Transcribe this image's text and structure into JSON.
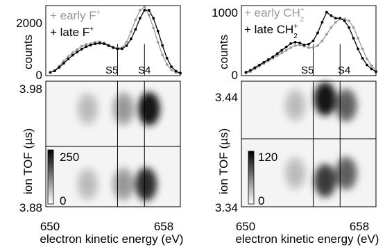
{
  "chart_data": [
    {
      "type": "line",
      "panel": "F+ counts",
      "ylabel": "counts",
      "xlim": [
        650,
        659
      ],
      "ylim": [
        0,
        2200
      ],
      "yticks": [
        "0",
        "2000"
      ],
      "vlines": [
        {
          "x": 654.8,
          "label": "S5"
        },
        {
          "x": 656.6,
          "label": "S4"
        }
      ],
      "legend_position": "top-left",
      "series": [
        {
          "name": "+ early F",
          "color": "#999999",
          "x": [
            650.3,
            650.6,
            650.9,
            651.2,
            651.5,
            651.8,
            652.1,
            652.4,
            652.7,
            653.0,
            653.3,
            653.6,
            653.9,
            654.2,
            654.5,
            654.8,
            655.1,
            655.4,
            655.7,
            656.0,
            656.3,
            656.6,
            656.9,
            657.2,
            657.5,
            657.8,
            658.1,
            658.4,
            658.7,
            659.0
          ],
          "values": [
            100,
            160,
            300,
            460,
            600,
            720,
            820,
            920,
            980,
            1000,
            1050,
            1060,
            1030,
            960,
            900,
            860,
            880,
            1050,
            1380,
            1750,
            2050,
            2150,
            1900,
            1500,
            1050,
            650,
            350,
            180,
            100,
            60
          ]
        },
        {
          "name": "+ late F",
          "color": "#000000",
          "x": [
            650.3,
            650.6,
            650.9,
            651.2,
            651.5,
            651.8,
            652.1,
            652.4,
            652.7,
            653.0,
            653.3,
            653.6,
            653.9,
            654.2,
            654.5,
            654.8,
            655.1,
            655.4,
            655.7,
            656.0,
            656.3,
            656.6,
            656.9,
            657.2,
            657.5,
            657.8,
            658.1,
            658.4,
            658.7,
            659.0
          ],
          "values": [
            100,
            150,
            260,
            390,
            520,
            640,
            740,
            830,
            910,
            960,
            1000,
            1020,
            1000,
            940,
            880,
            840,
            840,
            940,
            1150,
            1450,
            1800,
            2050,
            2050,
            1800,
            1400,
            950,
            550,
            280,
            140,
            80
          ]
        }
      ]
    },
    {
      "type": "heatmap",
      "panel": "F+ coincidence map",
      "xlabel": "electron kinetic energy (eV)",
      "ylabel": "ion TOF (µs)",
      "xlim": [
        650,
        659
      ],
      "ylim": [
        3.88,
        3.98
      ],
      "xticks": [
        "650",
        "658"
      ],
      "yticks": [
        "3.98",
        "3.88"
      ],
      "hline": 3.928,
      "vlines": [
        654.8,
        656.6
      ],
      "colorbar": {
        "min": "0",
        "max": "250"
      },
      "blobs": [
        {
          "x": 656.9,
          "y": 3.958,
          "intensity": 1.0
        },
        {
          "x": 655.2,
          "y": 3.958,
          "intensity": 0.45
        },
        {
          "x": 652.8,
          "y": 3.958,
          "intensity": 0.3
        },
        {
          "x": 656.7,
          "y": 3.898,
          "intensity": 0.9
        },
        {
          "x": 655.2,
          "y": 3.898,
          "intensity": 0.45
        },
        {
          "x": 652.8,
          "y": 3.898,
          "intensity": 0.3
        }
      ]
    },
    {
      "type": "line",
      "panel": "CH2+ counts",
      "ylabel": "counts",
      "xlim": [
        650,
        659
      ],
      "ylim": [
        0,
        1050
      ],
      "yticks": [
        "0",
        "1000"
      ],
      "vlines": [
        {
          "x": 654.8,
          "label": "S5"
        },
        {
          "x": 656.6,
          "label": "S4"
        }
      ],
      "legend_position": "top-left",
      "series": [
        {
          "name": "+ early CH",
          "color": "#999999",
          "x": [
            650.3,
            650.6,
            650.9,
            651.2,
            651.5,
            651.8,
            652.1,
            652.4,
            652.7,
            653.0,
            653.3,
            653.6,
            653.9,
            654.2,
            654.5,
            654.8,
            655.1,
            655.4,
            655.7,
            656.0,
            656.3,
            656.6,
            656.9,
            657.2,
            657.5,
            657.8,
            658.1,
            658.4,
            658.7,
            659.0
          ],
          "values": [
            40,
            60,
            100,
            140,
            180,
            220,
            260,
            300,
            340,
            380,
            420,
            450,
            460,
            440,
            420,
            420,
            450,
            520,
            620,
            720,
            800,
            850,
            850,
            820,
            720,
            560,
            400,
            250,
            150,
            80
          ]
        },
        {
          "name": "+ late CH",
          "color": "#000000",
          "x": [
            650.3,
            650.6,
            650.9,
            651.2,
            651.5,
            651.8,
            652.1,
            652.4,
            652.7,
            653.0,
            653.3,
            653.6,
            653.9,
            654.2,
            654.5,
            654.8,
            655.1,
            655.4,
            655.7,
            656.0,
            656.3,
            656.6,
            656.9,
            657.2,
            657.5,
            657.8,
            658.1,
            658.4,
            658.7,
            659.0
          ],
          "values": [
            50,
            80,
            120,
            160,
            200,
            240,
            280,
            330,
            380,
            430,
            480,
            500,
            490,
            460,
            470,
            520,
            640,
            800,
            950,
            900,
            860,
            860,
            820,
            720,
            560,
            400,
            260,
            160,
            100,
            60
          ]
        }
      ]
    },
    {
      "type": "heatmap",
      "panel": "CH2+ coincidence map",
      "xlabel": "electron kinetic energy (eV)",
      "ylabel": "ion TOF (µs)",
      "xlim": [
        650,
        659
      ],
      "ylim": [
        3.34,
        3.46
      ],
      "xticks": [
        "650",
        "658"
      ],
      "yticks": [
        "3.44",
        "3.34"
      ],
      "hline": 3.405,
      "vlines": [
        654.8,
        656.6
      ],
      "colorbar": {
        "min": "0",
        "max": "120"
      },
      "blobs": [
        {
          "x": 655.6,
          "y": 3.443,
          "intensity": 1.0
        },
        {
          "x": 657.0,
          "y": 3.437,
          "intensity": 0.7
        },
        {
          "x": 653.6,
          "y": 3.437,
          "intensity": 0.3
        },
        {
          "x": 655.6,
          "y": 3.365,
          "intensity": 0.85
        },
        {
          "x": 657.0,
          "y": 3.372,
          "intensity": 0.7
        },
        {
          "x": 653.6,
          "y": 3.372,
          "intensity": 0.3
        }
      ]
    }
  ]
}
